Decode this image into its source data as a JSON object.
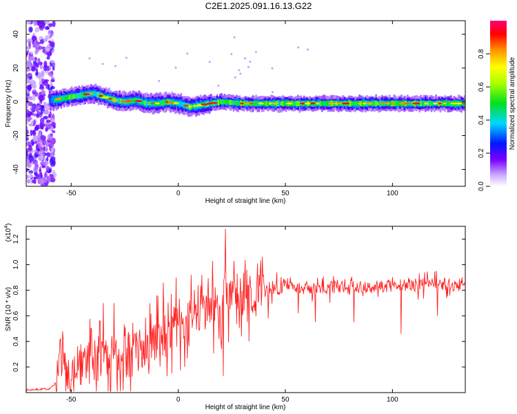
{
  "title": "C2E1.2025.091.16.13.G22",
  "chart_data": [
    {
      "type": "heatmap",
      "xlabel": "Height of straight line (km)",
      "ylabel": "Frequency (Hz)",
      "xlim": [
        -71,
        134
      ],
      "ylim": [
        -50,
        48
      ],
      "xticks": [
        -50,
        0,
        50,
        100
      ],
      "yticks": [
        -40,
        -20,
        0,
        20,
        40
      ],
      "xtick_labels": [
        "-50",
        "0",
        "50",
        "100"
      ],
      "ytick_labels": [
        "-40",
        "-20",
        "0",
        "20",
        "40"
      ],
      "ridge_frequency_hz": {
        "x": [
          -58,
          -55,
          -50,
          -45,
          -40,
          -35,
          -30,
          -25,
          -20,
          -15,
          -10,
          -5,
          0,
          5,
          10,
          15,
          20,
          30,
          40,
          50,
          60,
          70,
          80,
          90,
          100,
          110,
          120,
          134
        ],
        "y": [
          1,
          2,
          3,
          4,
          5,
          3,
          1,
          0,
          1,
          -1,
          -1,
          0,
          -1,
          -3,
          -2,
          -1,
          0,
          -1,
          -1,
          -1,
          -1,
          -1,
          -1,
          -1,
          -1,
          -1,
          -1,
          -1
        ]
      },
      "colorbar": {
        "label": "Normalized spectral amplitude",
        "range": [
          0,
          1
        ],
        "ticks": [
          0.0,
          0.2,
          0.4,
          0.6,
          0.8
        ],
        "tick_labels": [
          "0.0",
          "0.2",
          "0.4",
          "0.6",
          "0.8"
        ]
      },
      "grid": false
    },
    {
      "type": "line",
      "xlabel": "Height of straight line (km)",
      "ylabel": "SNR (10 * v/v)",
      "scale_label": "(x10",
      "scale_exponent": "4",
      "scale_suffix": ")",
      "xlim": [
        -71,
        134
      ],
      "ylim": [
        0,
        1.3
      ],
      "xticks": [
        -50,
        0,
        50,
        100
      ],
      "yticks": [
        0.2,
        0.4,
        0.6,
        0.8,
        1.0,
        1.2
      ],
      "xtick_labels": [
        "-50",
        "0",
        "50",
        "100"
      ],
      "ytick_labels": [
        "0.2",
        "0.4",
        "0.6",
        "0.8",
        "1.0",
        "1.2"
      ],
      "series": [
        {
          "color": "#ff2020",
          "x": [
            -71,
            -60,
            -57,
            -55,
            -52,
            -50,
            -45,
            -40,
            -35,
            -30,
            -25,
            -20,
            -15,
            -10,
            -5,
            0,
            5,
            10,
            15,
            20,
            22,
            25,
            30,
            40,
            50,
            60,
            70,
            80,
            90,
            100,
            110,
            120,
            130,
            134
          ],
          "y": [
            0.02,
            0.03,
            0.08,
            0.16,
            0.12,
            0.14,
            0.22,
            0.26,
            0.3,
            0.28,
            0.3,
            0.3,
            0.38,
            0.42,
            0.48,
            0.55,
            0.56,
            0.62,
            0.66,
            0.7,
            0.8,
            0.74,
            0.76,
            0.8,
            0.82,
            0.82,
            0.82,
            0.84,
            0.82,
            0.84,
            0.84,
            0.86,
            0.84,
            0.84
          ],
          "peaks": {
            "x": [
              -55,
              -35,
              -30,
              -10,
              -7,
              -1,
              6,
              11,
              16,
              22,
              26,
              32,
              37,
              46
            ],
            "y": [
              0.42,
              0.7,
              0.7,
              0.76,
              0.86,
              0.9,
              0.92,
              0.92,
              1.03,
              1.28,
              1.03,
              0.96,
              1.01,
              0.94
            ]
          },
          "dips": {
            "x": [
              -52,
              -40,
              -23,
              -3,
              3,
              21,
              33,
              42,
              56,
              64,
              82,
              104,
              121
            ],
            "y": [
              0.05,
              0.18,
              0.12,
              0.15,
              0.2,
              0.13,
              0.4,
              0.58,
              0.62,
              0.55,
              0.55,
              0.46,
              0.6
            ]
          }
        }
      ],
      "grid": false
    }
  ]
}
